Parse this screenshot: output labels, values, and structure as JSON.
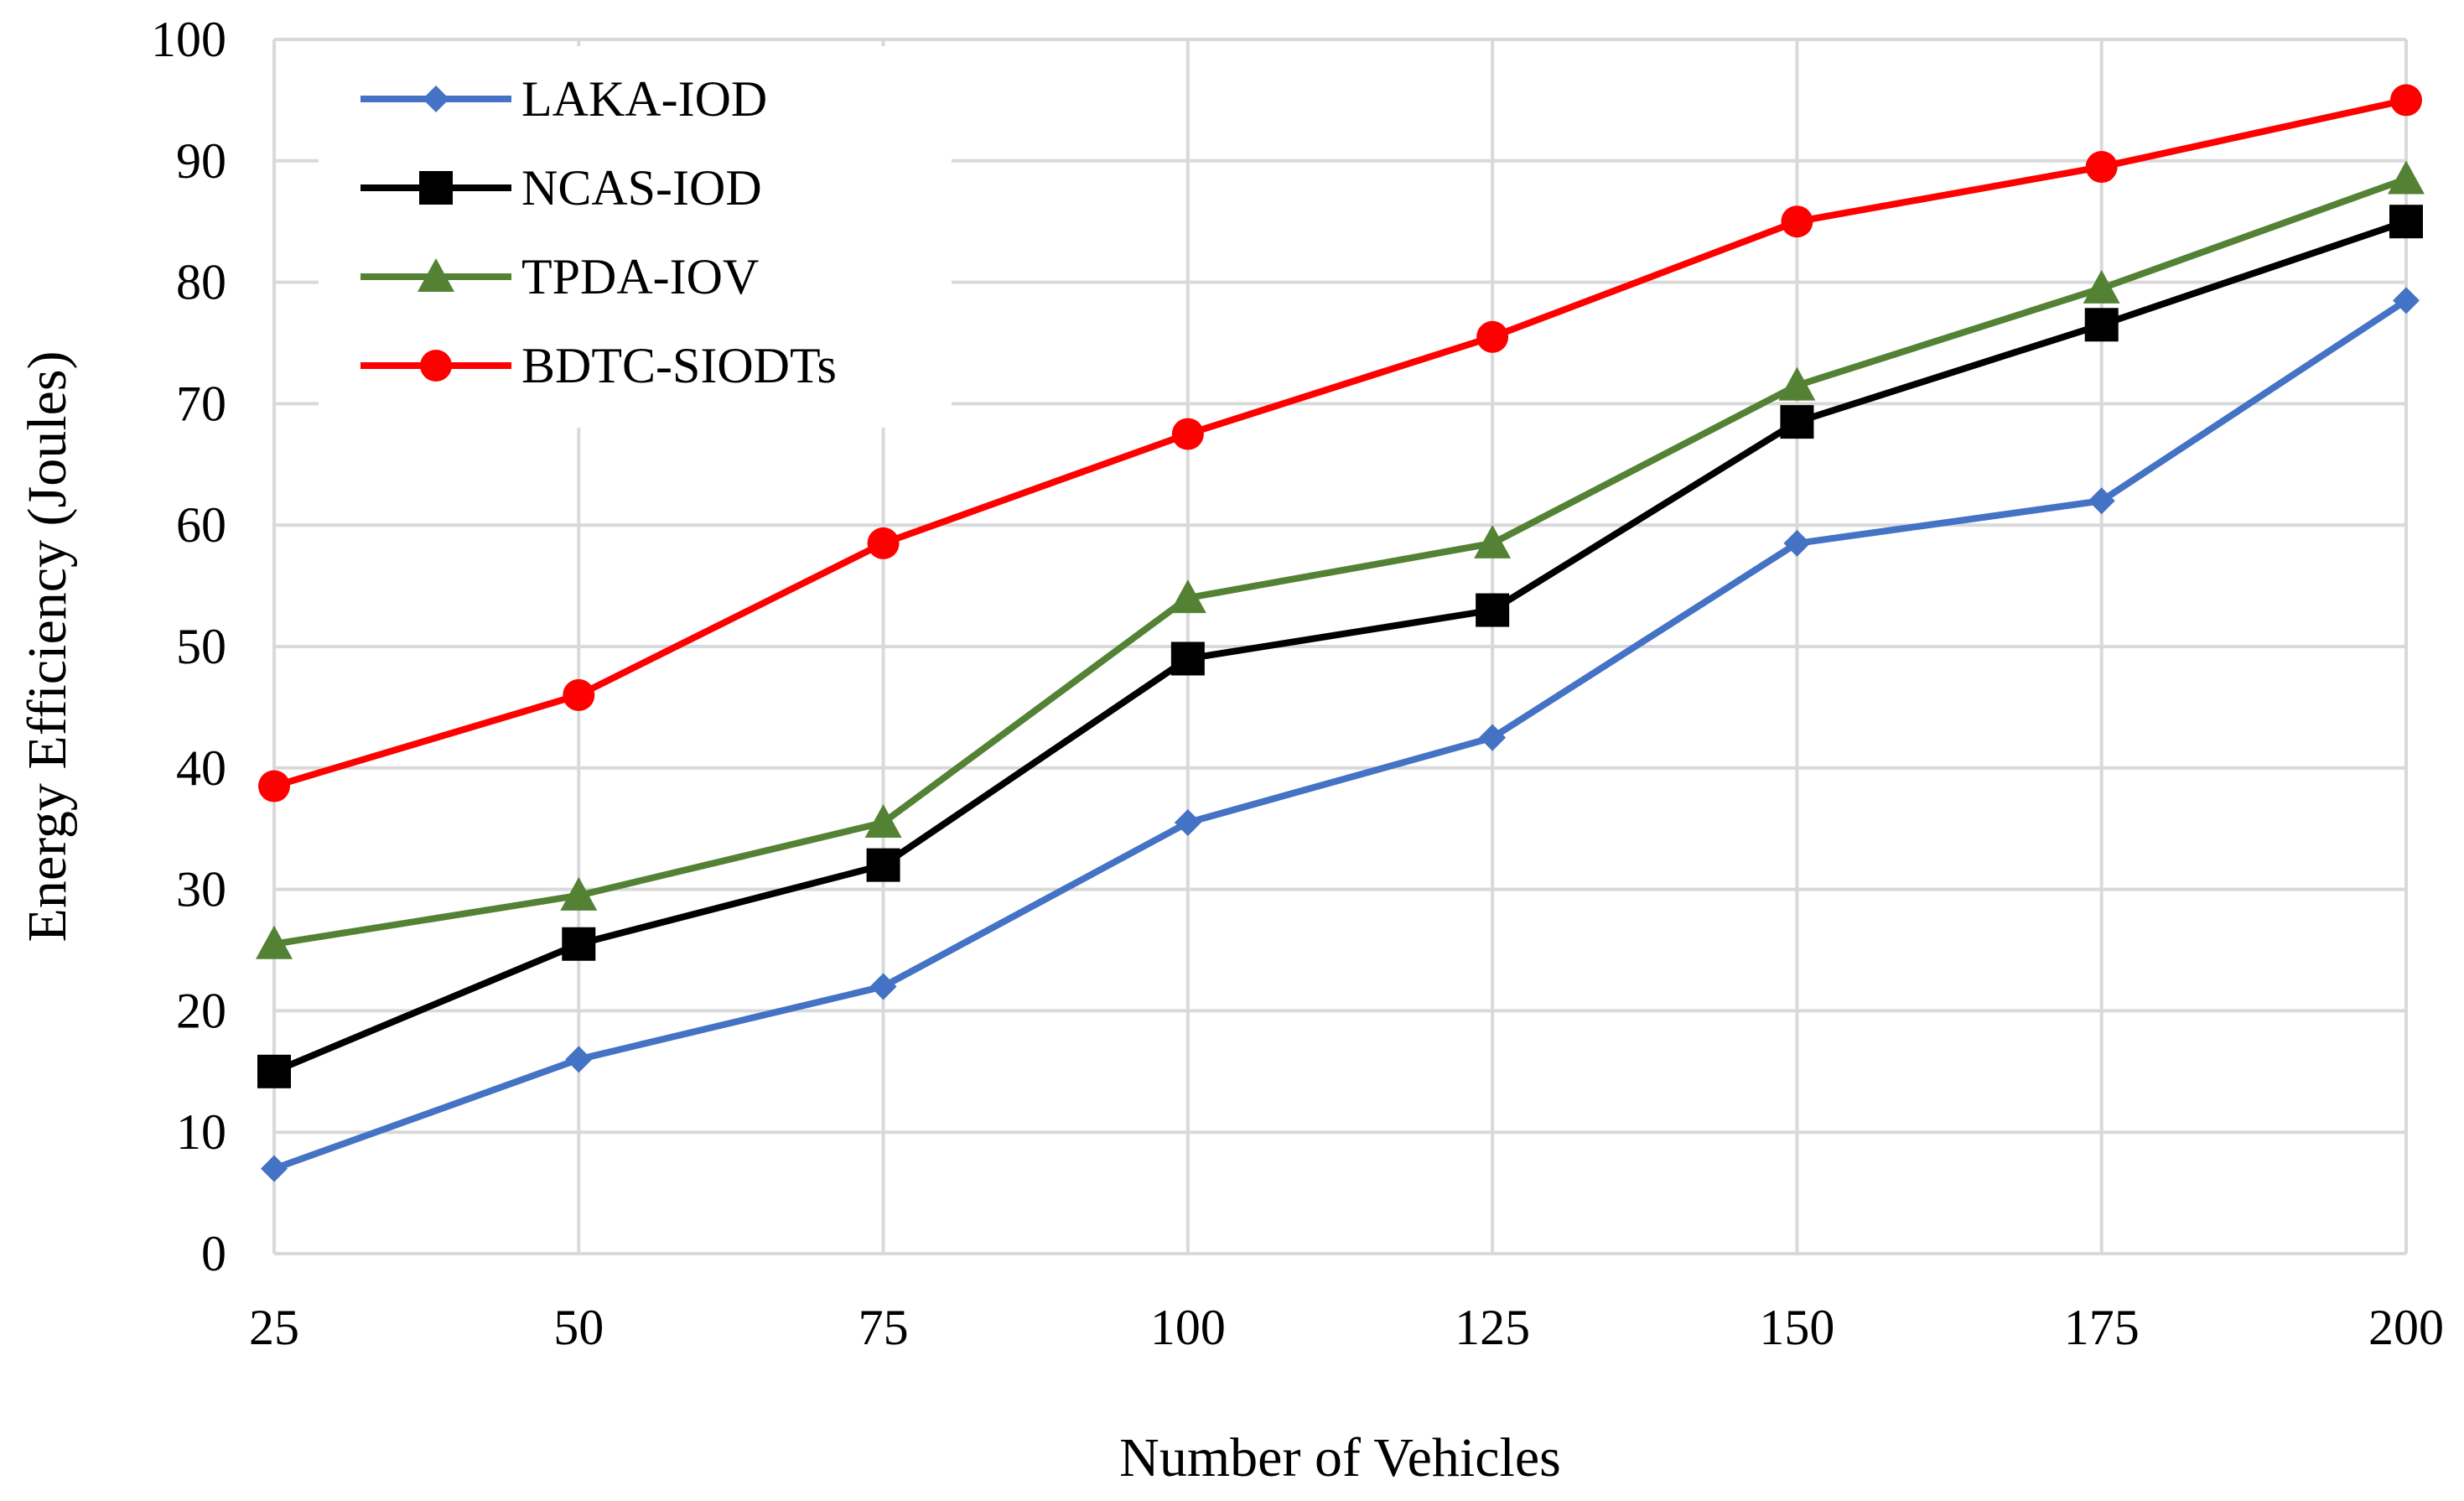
{
  "chart_data": {
    "type": "line",
    "title": "",
    "xlabel": "Number of Vehicles",
    "ylabel": "Energy Efficiency (Joules)",
    "categories": [
      "25",
      "50",
      "75",
      "100",
      "125",
      "150",
      "175",
      "200"
    ],
    "ylim": [
      0,
      100
    ],
    "yticks": [
      0,
      10,
      20,
      30,
      40,
      50,
      60,
      70,
      80,
      90,
      100
    ],
    "grid": true,
    "legend_position": "top-left",
    "series": [
      {
        "name": "LAKA-IOD",
        "color": "#4472C4",
        "marker": "diamond",
        "values": [
          7,
          16,
          22,
          35.5,
          42.5,
          58.5,
          62,
          78.5
        ]
      },
      {
        "name": "NCAS-IOD",
        "color": "#000000",
        "marker": "square",
        "values": [
          15,
          25.5,
          32,
          49,
          53,
          68.5,
          76.5,
          85
        ]
      },
      {
        "name": "TPDA-IOV",
        "color": "#548235",
        "marker": "triangle",
        "values": [
          25.5,
          29.5,
          35.5,
          54,
          58.5,
          71.5,
          79.5,
          88.5
        ]
      },
      {
        "name": "BDTC-SIODTs",
        "color": "#FF0000",
        "marker": "circle",
        "values": [
          38.5,
          46,
          58.5,
          67.5,
          75.5,
          85,
          89.5,
          95
        ]
      }
    ],
    "gridline_color": "#D9D9D9"
  }
}
